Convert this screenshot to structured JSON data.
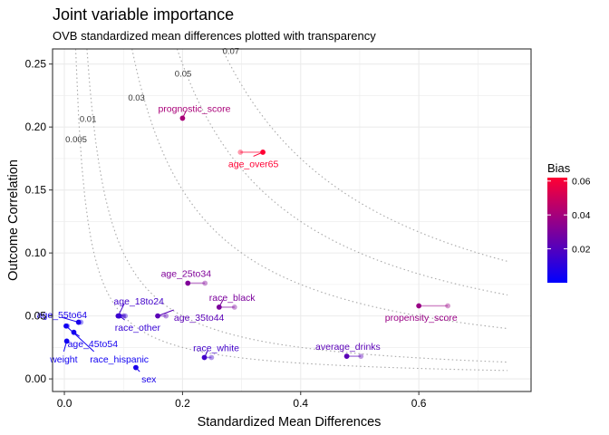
{
  "chart_data": {
    "type": "scatter",
    "title": "Joint variable importance",
    "subtitle": "OVB standardized mean differences plotted with transparency",
    "xlabel": "Standardized Mean Differences",
    "ylabel": "Outcome Correlation",
    "xlim": [
      -0.02,
      0.79
    ],
    "ylim": [
      -0.01,
      0.262
    ],
    "xticks": [
      {
        "value": 0.0,
        "label": "0.0"
      },
      {
        "value": 0.2,
        "label": "0.2"
      },
      {
        "value": 0.4,
        "label": "0.4"
      },
      {
        "value": 0.6,
        "label": "0.6"
      }
    ],
    "yticks": [
      {
        "value": 0.0,
        "label": "0.00"
      },
      {
        "value": 0.05,
        "label": "0.05"
      },
      {
        "value": 0.1,
        "label": "0.10"
      },
      {
        "value": 0.15,
        "label": "0.15"
      },
      {
        "value": 0.2,
        "label": "0.20"
      },
      {
        "value": 0.25,
        "label": "0.25"
      }
    ],
    "grid": true,
    "contours": [
      {
        "level": 0.005,
        "label": "0.005",
        "label_x": 0.02,
        "label_y": 0.188
      },
      {
        "level": 0.01,
        "label": "0.01",
        "label_x": 0.04,
        "label_y": 0.204
      },
      {
        "level": 0.03,
        "label": "0.03",
        "label_x": 0.122,
        "label_y": 0.221
      },
      {
        "level": 0.05,
        "label": "0.05",
        "label_x": 0.201,
        "label_y": 0.24
      },
      {
        "level": 0.07,
        "label": "0.07",
        "label_x": 0.282,
        "label_y": 0.258
      }
    ],
    "points": [
      {
        "name": "prognostic_score",
        "x": 0.2,
        "y": 0.207,
        "x_alt": 0.2,
        "bias": 0.041,
        "label_x": 0.22,
        "label_y": 0.215
      },
      {
        "name": "age_over65",
        "x": 0.336,
        "y": 0.18,
        "x_alt": 0.298,
        "bias": 0.062,
        "label_x": 0.32,
        "label_y": 0.171
      },
      {
        "name": "age_25to34",
        "x": 0.209,
        "y": 0.076,
        "x_alt": 0.238,
        "bias": 0.031,
        "label_x": 0.206,
        "label_y": 0.084
      },
      {
        "name": "race_black",
        "x": 0.262,
        "y": 0.057,
        "x_alt": 0.288,
        "bias": 0.03,
        "label_x": 0.284,
        "label_y": 0.065
      },
      {
        "name": "propensity_score",
        "x": 0.6,
        "y": 0.058,
        "x_alt": 0.649,
        "bias": 0.037,
        "label_x": 0.604,
        "label_y": 0.049
      },
      {
        "name": "age_18to24",
        "x": 0.091,
        "y": 0.05,
        "x_alt": 0.1,
        "bias": 0.016,
        "label_x": 0.126,
        "label_y": 0.062
      },
      {
        "name": "race_other",
        "x": 0.093,
        "y": 0.05,
        "x_alt": 0.103,
        "bias": 0.013,
        "label_x": 0.124,
        "label_y": 0.041
      },
      {
        "name": "age_35to44",
        "x": 0.158,
        "y": 0.05,
        "x_alt": 0.172,
        "bias": 0.022,
        "label_x": 0.228,
        "label_y": 0.049
      },
      {
        "name": "age_55to64",
        "x": 0.024,
        "y": 0.045,
        "x_alt": 0.028,
        "bias": 0.006,
        "label_x": -0.004,
        "label_y": 0.051
      },
      {
        "name": "race_white",
        "x": 0.237,
        "y": 0.017,
        "x_alt": 0.249,
        "bias": 0.016,
        "label_x": 0.257,
        "label_y": 0.025
      },
      {
        "name": "average_drinks",
        "x": 0.478,
        "y": 0.018,
        "x_alt": 0.502,
        "bias": 0.022,
        "label_x": 0.48,
        "label_y": 0.026
      },
      {
        "name": "age_45to54",
        "x": 0.016,
        "y": 0.037,
        "x_alt": 0.016,
        "bias": 0.005,
        "label_x": 0.048,
        "label_y": 0.028
      },
      {
        "name": "race_hispanic",
        "x": 0.003,
        "y": 0.042,
        "x_alt": 0.005,
        "bias": 0.004,
        "label_x": 0.093,
        "label_y": 0.016
      },
      {
        "name": "weight",
        "x": 0.004,
        "y": 0.03,
        "x_alt": 0.004,
        "bias": 0.004,
        "label_x": -0.001,
        "label_y": 0.016
      },
      {
        "name": "sex",
        "x": 0.121,
        "y": 0.009,
        "x_alt": 0.121,
        "bias": 0.006,
        "label_x": 0.143,
        "label_y": 0.0
      }
    ],
    "legend": {
      "title": "Bias",
      "placement": "right",
      "min": 0.0,
      "max": 0.062,
      "ticks": [
        {
          "value": 0.02,
          "label": "0.02"
        },
        {
          "value": 0.04,
          "label": "0.04"
        },
        {
          "value": 0.06,
          "label": "0.06"
        }
      ],
      "color_low": "#0000ff",
      "color_high": "#ff0000"
    },
    "colors": {
      "grid": "#ebebeb",
      "contour": "#a8a8a8"
    }
  }
}
